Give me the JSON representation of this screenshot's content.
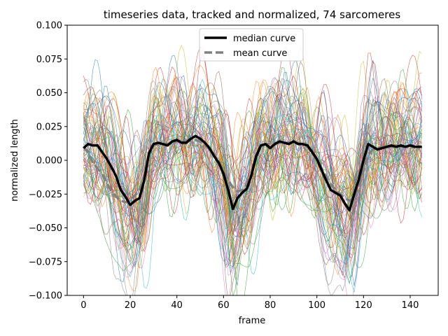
{
  "chart_data": {
    "type": "line",
    "title": "timeseries data, tracked and normalized, 74 sarcomeres",
    "xlabel": "frame",
    "ylabel": "normalized length",
    "xlim": [
      -7,
      152
    ],
    "ylim": [
      -0.1,
      0.1
    ],
    "x_ticks": [
      0,
      20,
      40,
      60,
      80,
      100,
      120,
      140
    ],
    "y_ticks": [
      -0.1,
      -0.075,
      -0.05,
      -0.025,
      0.0,
      0.025,
      0.05,
      0.075,
      0.1
    ],
    "x_tick_labels": [
      "0",
      "20",
      "40",
      "60",
      "80",
      "100",
      "120",
      "140"
    ],
    "y_tick_labels": [
      "−0.100",
      "−0.075",
      "−0.050",
      "−0.025",
      "0.000",
      "0.025",
      "0.050",
      "0.075",
      "0.100"
    ],
    "grid": false,
    "legend_position": "top-center",
    "background_traces": {
      "count": 74,
      "colors": [
        "#1f77b4",
        "#ff7f0e",
        "#2ca02c",
        "#d62728",
        "#9467bd",
        "#8c564b",
        "#e377c2",
        "#7f7f7f",
        "#bcbd22",
        "#17becf"
      ]
    },
    "series": [
      {
        "name": "median curve",
        "color": "#000000",
        "style": "solid",
        "x": [
          0,
          2,
          4,
          6,
          8,
          10,
          12,
          14,
          16,
          18,
          20,
          22,
          24,
          26,
          28,
          30,
          32,
          34,
          36,
          38,
          40,
          42,
          44,
          46,
          48,
          50,
          52,
          54,
          56,
          58,
          60,
          62,
          64,
          66,
          68,
          70,
          72,
          74,
          76,
          78,
          80,
          82,
          84,
          86,
          88,
          90,
          92,
          94,
          96,
          98,
          100,
          102,
          104,
          106,
          108,
          110,
          112,
          114,
          116,
          118,
          120,
          122,
          124,
          126,
          128,
          130,
          132,
          134,
          136,
          138,
          140,
          142,
          145
        ],
        "y": [
          0.009,
          0.012,
          0.011,
          0.011,
          0.006,
          0.001,
          -0.005,
          -0.012,
          -0.022,
          -0.027,
          -0.033,
          -0.03,
          -0.028,
          -0.015,
          0.005,
          0.012,
          0.013,
          0.012,
          0.011,
          0.014,
          0.015,
          0.013,
          0.013,
          0.016,
          0.018,
          0.016,
          0.013,
          0.009,
          0.003,
          -0.002,
          -0.01,
          -0.022,
          -0.036,
          -0.028,
          -0.024,
          -0.021,
          -0.011,
          0.003,
          0.011,
          0.012,
          0.009,
          0.012,
          0.014,
          0.013,
          0.012,
          0.014,
          0.012,
          0.012,
          0.011,
          0.006,
          0.001,
          -0.007,
          -0.015,
          -0.022,
          -0.024,
          -0.026,
          -0.032,
          -0.037,
          -0.025,
          -0.014,
          0.0,
          0.012,
          0.01,
          0.008,
          0.009,
          0.01,
          0.011,
          0.01,
          0.011,
          0.01,
          0.011,
          0.01,
          0.01
        ]
      },
      {
        "name": "mean curve",
        "color": "#808080",
        "style": "dashed",
        "x": [
          0,
          2,
          4,
          6,
          8,
          10,
          12,
          14,
          16,
          18,
          20,
          22,
          24,
          26,
          28,
          30,
          32,
          34,
          36,
          38,
          40,
          42,
          44,
          46,
          48,
          50,
          52,
          54,
          56,
          58,
          60,
          62,
          64,
          66,
          68,
          70,
          72,
          74,
          76,
          78,
          80,
          82,
          84,
          86,
          88,
          90,
          92,
          94,
          96,
          98,
          100,
          102,
          104,
          106,
          108,
          110,
          112,
          114,
          116,
          118,
          120,
          122,
          124,
          126,
          128,
          130,
          132,
          134,
          136,
          138,
          140,
          142,
          145
        ],
        "y": [
          0.01,
          0.006,
          -0.002,
          -0.006,
          -0.01,
          -0.017,
          -0.023,
          -0.027,
          -0.03,
          -0.031,
          -0.029,
          -0.026,
          -0.022,
          -0.012,
          0.004,
          0.011,
          0.012,
          0.012,
          0.012,
          0.013,
          0.014,
          0.014,
          0.014,
          0.015,
          0.015,
          0.014,
          0.012,
          0.008,
          0.004,
          -0.001,
          -0.008,
          -0.015,
          -0.02,
          -0.023,
          -0.022,
          -0.018,
          -0.01,
          0.002,
          0.01,
          0.012,
          0.012,
          0.013,
          0.013,
          0.013,
          0.013,
          0.013,
          0.013,
          0.012,
          0.01,
          0.006,
          0.0,
          -0.006,
          -0.012,
          -0.018,
          -0.022,
          -0.025,
          -0.028,
          -0.03,
          -0.028,
          -0.02,
          -0.008,
          0.004,
          0.008,
          0.009,
          0.01,
          0.01,
          0.01,
          0.01,
          0.01,
          0.01,
          0.01,
          0.01,
          0.01
        ]
      }
    ]
  }
}
